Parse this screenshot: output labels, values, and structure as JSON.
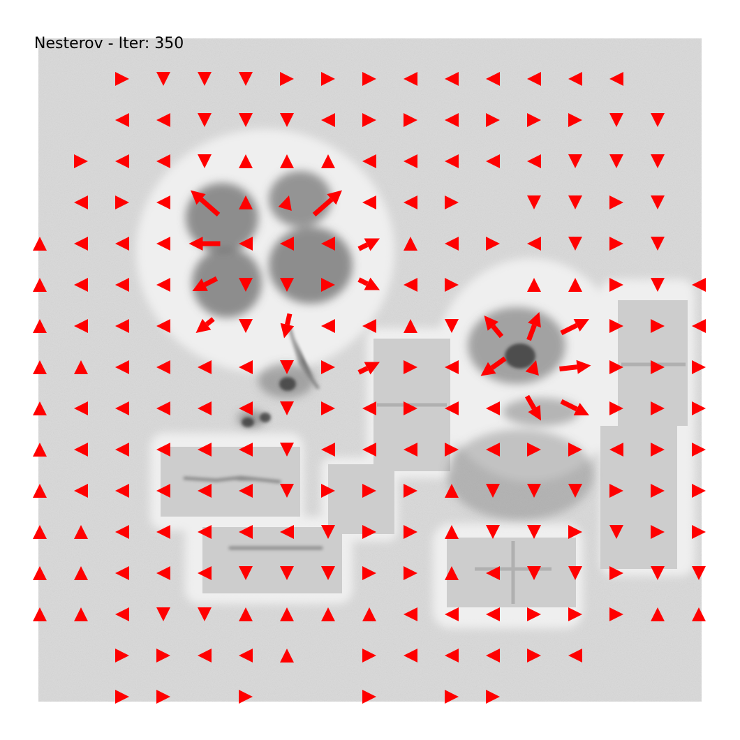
{
  "title": "Nesterov - Iter: 350",
  "colors": {
    "arrow": "#ff0000",
    "background": "#d9d9d9",
    "blob": "#6e6e6e",
    "halo": "#efefef",
    "patch": "#cdcdcd"
  },
  "arrow_field": {
    "optimizer": "Nesterov",
    "iteration": 350,
    "grid_spacing": 59,
    "grid_columns": 16,
    "grid_rows": 16
  }
}
